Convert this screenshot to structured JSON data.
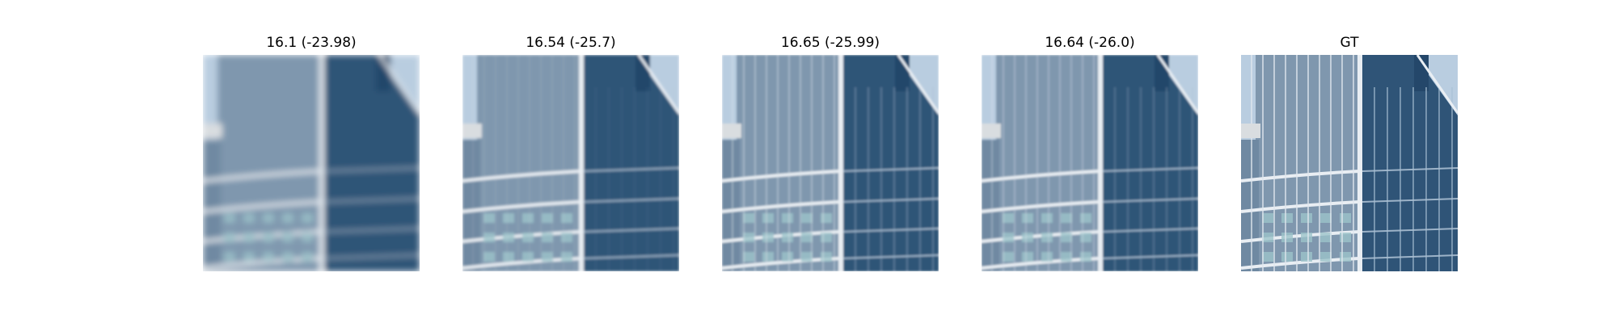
{
  "panels": [
    {
      "title": "16.1 (-23.98)",
      "blur": 4.0,
      "grid": 0.0
    },
    {
      "title": "16.54 (-25.7)",
      "blur": 1.6,
      "grid": 0.15
    },
    {
      "title": "16.65 (-25.99)",
      "blur": 1.3,
      "grid": 0.55
    },
    {
      "title": "16.64 (-26.0)",
      "blur": 1.3,
      "grid": 0.45
    },
    {
      "title": "GT",
      "blur": 0.0,
      "grid": 1.0
    }
  ],
  "colors": {
    "sky": "#b9cde0",
    "left_facade": "#7f97ae",
    "right_facade": "#2f5477",
    "frame": "#e9eef3"
  }
}
